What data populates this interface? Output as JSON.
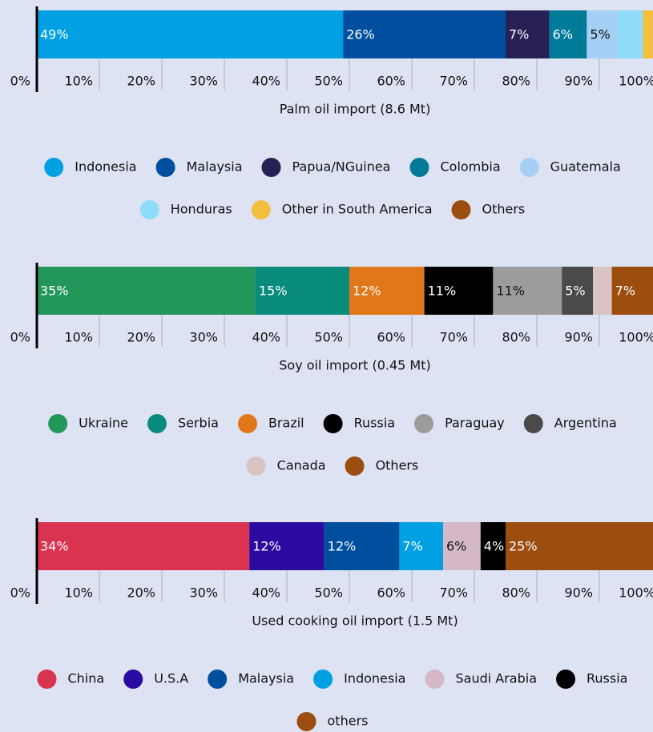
{
  "chart_data": [
    {
      "type": "stacked-bar",
      "title": "Palm oil import (8.6 Mt)",
      "categories": [
        "Indonesia",
        "Malaysia",
        "Papua/NGuinea",
        "Colombia",
        "Guatemala",
        "Honduras",
        "Other in South America",
        "Others"
      ],
      "values": [
        49,
        26,
        7,
        6,
        5,
        4,
        2,
        1
      ],
      "value_labels": [
        "49%",
        "26%",
        "7%",
        "6%",
        "5%",
        null,
        null,
        null
      ],
      "colors": [
        "#00a0e3",
        "#004f9f",
        "#262054",
        "#007a99",
        "#a6cff5",
        "#8fdcfa",
        "#f2bf3e",
        "#9c4d10"
      ],
      "xlim": [
        0,
        100
      ],
      "xticks": [
        {
          "value": 0,
          "label": "0%"
        },
        {
          "value": 10,
          "label": "10%"
        },
        {
          "value": 20,
          "label": "20%"
        },
        {
          "value": 30,
          "label": "30%"
        },
        {
          "value": 40,
          "label": "40%"
        },
        {
          "value": 50,
          "label": "50%"
        },
        {
          "value": 60,
          "label": "60%"
        },
        {
          "value": 70,
          "label": "70%"
        },
        {
          "value": 80,
          "label": "80%"
        },
        {
          "value": 90,
          "label": "90%"
        },
        {
          "value": 100,
          "label": "100%"
        }
      ]
    },
    {
      "type": "stacked-bar",
      "title": "Soy oil import (0.45 Mt)",
      "categories": [
        "Ukraine",
        "Serbia",
        "Brazil",
        "Russia",
        "Paraguay",
        "Argentina",
        "Canada",
        "Others"
      ],
      "values": [
        35,
        15,
        12,
        11,
        11,
        5,
        3,
        7
      ],
      "value_labels": [
        "35%",
        "15%",
        "12%",
        "11%",
        "11%",
        "5%",
        null,
        "7%"
      ],
      "colors": [
        "#23975a",
        "#0a8c7c",
        "#e07718",
        "#000000",
        "#9c9c9c",
        "#4a4a4a",
        "#d9c3c3",
        "#9c4d10"
      ],
      "xlim": [
        0,
        100
      ],
      "xticks": [
        {
          "value": 0,
          "label": "0%"
        },
        {
          "value": 10,
          "label": "10%"
        },
        {
          "value": 20,
          "label": "20%"
        },
        {
          "value": 30,
          "label": "30%"
        },
        {
          "value": 40,
          "label": "40%"
        },
        {
          "value": 50,
          "label": "50%"
        },
        {
          "value": 60,
          "label": "60%"
        },
        {
          "value": 70,
          "label": "70%"
        },
        {
          "value": 80,
          "label": "80%"
        },
        {
          "value": 90,
          "label": "90%"
        },
        {
          "value": 100,
          "label": "100%"
        }
      ]
    },
    {
      "type": "stacked-bar",
      "title": "Used cooking oil import (1.5 Mt)",
      "categories": [
        "China",
        "U.S.A",
        "Malaysia",
        "Indonesia",
        "Saudi Arabia",
        "Russia",
        "others"
      ],
      "values": [
        34,
        12,
        12,
        7,
        6,
        4,
        25
      ],
      "value_labels": [
        "34%",
        "12%",
        "12%",
        "7%",
        "6%",
        "4%",
        "25%"
      ],
      "colors": [
        "#d9334f",
        "#2a0aa0",
        "#004f9f",
        "#00a0e3",
        "#d4b8c8",
        "#000000",
        "#9c4d10"
      ],
      "xlim": [
        0,
        100
      ],
      "xticks": [
        {
          "value": 0,
          "label": "0%"
        },
        {
          "value": 10,
          "label": "10%"
        },
        {
          "value": 20,
          "label": "20%"
        },
        {
          "value": 30,
          "label": "30%"
        },
        {
          "value": 40,
          "label": "40%"
        },
        {
          "value": 50,
          "label": "50%"
        },
        {
          "value": 60,
          "label": "60%"
        },
        {
          "value": 70,
          "label": "70%"
        },
        {
          "value": 80,
          "label": "80%"
        },
        {
          "value": 90,
          "label": "90%"
        },
        {
          "value": 100,
          "label": "100%"
        }
      ]
    }
  ]
}
